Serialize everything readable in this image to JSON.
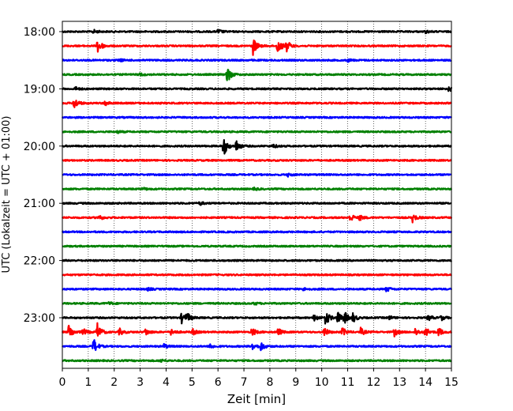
{
  "chart_data": {
    "type": "line",
    "title": "",
    "xlabel": "Zeit  [min]",
    "ylabel": "UTC (Lokalzeit = UTC + 01:00)",
    "xlim": [
      0,
      15
    ],
    "x_ticks": [
      "0",
      "1",
      "2",
      "3",
      "4",
      "5",
      "6",
      "7",
      "8",
      "9",
      "10",
      "11",
      "12",
      "13",
      "14",
      "15"
    ],
    "y_ticks": [
      "18:00",
      "19:00",
      "20:00",
      "21:00",
      "22:00",
      "23:00"
    ],
    "grid": "vertical dotted",
    "colors": [
      "#000000",
      "#ff0000",
      "#0000ff",
      "#008000"
    ],
    "trace_interval_min": 15,
    "traces": [
      {
        "start": "18:00",
        "color": "#000000",
        "events": [
          {
            "t": 1.2,
            "amp": 0.2
          },
          {
            "t": 6.0,
            "amp": 0.25
          },
          {
            "t": 14.0,
            "amp": 0.15
          }
        ]
      },
      {
        "start": "18:15",
        "color": "#ff0000",
        "events": [
          {
            "t": 1.35,
            "amp": 1.0
          },
          {
            "t": 7.35,
            "amp": 1.0
          },
          {
            "t": 8.3,
            "amp": 1.0
          },
          {
            "t": 8.65,
            "amp": 0.6
          }
        ]
      },
      {
        "start": "18:30",
        "color": "#0000ff",
        "events": [
          {
            "t": 2.2,
            "amp": 0.15
          },
          {
            "t": 11.0,
            "amp": 0.15
          }
        ]
      },
      {
        "start": "18:45",
        "color": "#008000",
        "events": [
          {
            "t": 6.35,
            "amp": 1.0
          },
          {
            "t": 3.0,
            "amp": 0.15
          }
        ]
      },
      {
        "start": "19:00",
        "color": "#000000",
        "events": [
          {
            "t": 0.5,
            "amp": 0.2
          },
          {
            "t": 14.9,
            "amp": 0.3
          }
        ]
      },
      {
        "start": "19:15",
        "color": "#ff0000",
        "events": [
          {
            "t": 0.45,
            "amp": 0.7
          },
          {
            "t": 1.65,
            "amp": 0.3
          }
        ]
      },
      {
        "start": "19:30",
        "color": "#0000ff",
        "events": []
      },
      {
        "start": "19:45",
        "color": "#008000",
        "events": [
          {
            "t": 2.1,
            "amp": 0.15
          }
        ]
      },
      {
        "start": "20:00",
        "color": "#000000",
        "events": [
          {
            "t": 6.2,
            "amp": 1.3
          },
          {
            "t": 6.7,
            "amp": 0.7
          },
          {
            "t": 8.1,
            "amp": 0.25
          }
        ]
      },
      {
        "start": "20:15",
        "color": "#ff0000",
        "events": []
      },
      {
        "start": "20:30",
        "color": "#0000ff",
        "events": [
          {
            "t": 8.7,
            "amp": 0.2
          }
        ]
      },
      {
        "start": "20:45",
        "color": "#008000",
        "events": [
          {
            "t": 3.1,
            "amp": 0.15
          },
          {
            "t": 7.4,
            "amp": 0.15
          }
        ]
      },
      {
        "start": "21:00",
        "color": "#000000",
        "events": [
          {
            "t": 5.3,
            "amp": 0.2
          }
        ]
      },
      {
        "start": "21:15",
        "color": "#ff0000",
        "events": [
          {
            "t": 1.4,
            "amp": 0.35
          },
          {
            "t": 11.1,
            "amp": 0.45
          },
          {
            "t": 11.45,
            "amp": 0.3
          },
          {
            "t": 13.5,
            "amp": 0.5
          }
        ]
      },
      {
        "start": "21:30",
        "color": "#0000ff",
        "events": []
      },
      {
        "start": "21:45",
        "color": "#008000",
        "events": []
      },
      {
        "start": "22:00",
        "color": "#000000",
        "events": []
      },
      {
        "start": "22:15",
        "color": "#ff0000",
        "events": []
      },
      {
        "start": "22:30",
        "color": "#0000ff",
        "events": [
          {
            "t": 12.5,
            "amp": 0.3
          },
          {
            "t": 3.3,
            "amp": 0.15
          },
          {
            "t": 9.3,
            "amp": 0.15
          }
        ]
      },
      {
        "start": "22:45",
        "color": "#008000",
        "events": [
          {
            "t": 1.8,
            "amp": 0.15
          },
          {
            "t": 7.4,
            "amp": 0.15
          }
        ]
      },
      {
        "start": "23:00",
        "color": "#000000",
        "events": [
          {
            "t": 4.6,
            "amp": 0.6
          },
          {
            "t": 4.8,
            "amp": 0.5
          },
          {
            "t": 9.7,
            "amp": 0.5
          },
          {
            "t": 10.15,
            "amp": 0.9
          },
          {
            "t": 10.6,
            "amp": 0.7
          },
          {
            "t": 10.85,
            "amp": 0.8
          },
          {
            "t": 11.2,
            "amp": 0.5
          },
          {
            "t": 12.6,
            "amp": 0.2
          },
          {
            "t": 14.1,
            "amp": 0.35
          },
          {
            "t": 14.6,
            "amp": 0.3
          }
        ]
      },
      {
        "start": "23:15",
        "color": "#ff0000",
        "events": [
          {
            "t": 0.25,
            "amp": 0.9
          },
          {
            "t": 1.35,
            "amp": 1.0
          },
          {
            "t": 0.8,
            "amp": 0.4
          },
          {
            "t": 2.2,
            "amp": 0.4
          },
          {
            "t": 3.2,
            "amp": 0.4
          },
          {
            "t": 4.2,
            "amp": 0.4
          },
          {
            "t": 5.0,
            "amp": 0.4
          },
          {
            "t": 7.3,
            "amp": 0.5
          },
          {
            "t": 8.3,
            "amp": 0.45
          },
          {
            "t": 10.1,
            "amp": 0.5
          },
          {
            "t": 10.8,
            "amp": 0.5
          },
          {
            "t": 11.5,
            "amp": 0.45
          },
          {
            "t": 12.8,
            "amp": 0.45
          },
          {
            "t": 13.6,
            "amp": 0.45
          },
          {
            "t": 14.0,
            "amp": 0.55
          },
          {
            "t": 14.5,
            "amp": 0.5
          }
        ]
      },
      {
        "start": "23:30",
        "color": "#0000ff",
        "events": [
          {
            "t": 1.2,
            "amp": 0.9
          },
          {
            "t": 3.9,
            "amp": 0.3
          },
          {
            "t": 5.7,
            "amp": 0.25
          },
          {
            "t": 7.3,
            "amp": 0.5
          },
          {
            "t": 7.65,
            "amp": 0.5
          }
        ]
      },
      {
        "start": "23:45",
        "color": "#008000",
        "events": [
          {
            "t": 3.8,
            "amp": 0.15
          }
        ]
      }
    ]
  }
}
